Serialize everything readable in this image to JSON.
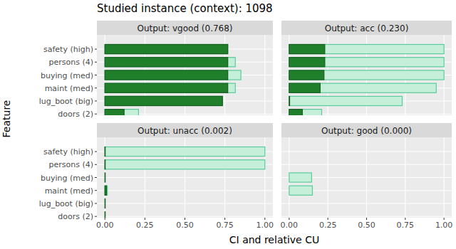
{
  "title": "Studied instance (context): 1098",
  "x_label": "CI and relative CU",
  "y_label": "Feature",
  "chart_data": [
    {
      "type": "bar",
      "orientation": "horizontal",
      "grid": true,
      "title": "Output: vgood (0.768)",
      "categories": [
        "safety (high)",
        "persons (4)",
        "buying (med)",
        "maint (med)",
        "lug_boot (big)",
        "doors (2)"
      ],
      "series": [
        {
          "color": "#c6efd9",
          "values": [
            0.768,
            0.815,
            0.85,
            0.815,
            0.735,
            0.21
          ]
        },
        {
          "color": "#1f7f2a",
          "values": [
            0.768,
            0.768,
            0.768,
            0.768,
            0.735,
            0.12
          ]
        }
      ],
      "xlim": [
        -0.05,
        1.05
      ],
      "xticks": [
        {
          "value": 0,
          "label": "0.00"
        },
        {
          "value": 0.25,
          "label": "0.25"
        },
        {
          "value": 0.5,
          "label": "0.50"
        },
        {
          "value": 0.75,
          "label": "0.75"
        },
        {
          "value": 1,
          "label": "1.00"
        }
      ]
    },
    {
      "type": "bar",
      "orientation": "horizontal",
      "grid": true,
      "title": "Output: acc (0.230)",
      "categories": [
        "safety (high)",
        "persons (4)",
        "buying (med)",
        "maint (med)",
        "lug_boot (big)",
        "doors (2)"
      ],
      "series": [
        {
          "color": "#c6efd9",
          "values": [
            1.0,
            1.0,
            1.0,
            0.95,
            0.73,
            0.21
          ]
        },
        {
          "color": "#1f7f2a",
          "values": [
            0.23,
            0.23,
            0.225,
            0.2,
            0.003,
            0.085
          ]
        }
      ],
      "xlim": [
        -0.05,
        1.05
      ],
      "xticks": [
        {
          "value": 0,
          "label": "0.00"
        },
        {
          "value": 0.25,
          "label": "0.25"
        },
        {
          "value": 0.5,
          "label": "0.50"
        },
        {
          "value": 0.75,
          "label": "0.75"
        },
        {
          "value": 1,
          "label": "1.00"
        }
      ]
    },
    {
      "type": "bar",
      "orientation": "horizontal",
      "grid": true,
      "title": "Output: unacc (0.002)",
      "categories": [
        "safety (high)",
        "persons (4)",
        "buying (med)",
        "maint (med)",
        "lug_boot (big)",
        "doors (2)"
      ],
      "series": [
        {
          "color": "#c6efd9",
          "values": [
            1.0,
            1.0,
            0.0,
            0.015,
            0.0,
            0.0
          ]
        },
        {
          "color": "#1f7f2a",
          "values": [
            0.002,
            0.002,
            0.002,
            0.01,
            0.002,
            0.002
          ]
        }
      ],
      "xlim": [
        -0.05,
        1.05
      ],
      "xticks": [
        {
          "value": 0,
          "label": "0.00"
        },
        {
          "value": 0.25,
          "label": "0.25"
        },
        {
          "value": 0.5,
          "label": "0.50"
        },
        {
          "value": 0.75,
          "label": "0.75"
        },
        {
          "value": 1,
          "label": "1.00"
        }
      ]
    },
    {
      "type": "bar",
      "orientation": "horizontal",
      "grid": true,
      "title": "Output: good (0.000)",
      "categories": [
        "safety (high)",
        "persons (4)",
        "buying (med)",
        "maint (med)",
        "lug_boot (big)",
        "doors (2)"
      ],
      "series": [
        {
          "color": "#c6efd9",
          "values": [
            0.0,
            0.0,
            0.145,
            0.15,
            0.0,
            0.0
          ]
        },
        {
          "color": "#1f7f2a",
          "values": [
            0.0,
            0.0,
            0.0,
            0.0,
            0.0,
            0.0
          ]
        }
      ],
      "xlim": [
        -0.05,
        1.05
      ],
      "xticks": [
        {
          "value": 0,
          "label": "0.00"
        },
        {
          "value": 0.25,
          "label": "0.25"
        },
        {
          "value": 0.5,
          "label": "0.50"
        },
        {
          "value": 0.75,
          "label": "0.75"
        },
        {
          "value": 1,
          "label": "1.00"
        }
      ]
    }
  ]
}
